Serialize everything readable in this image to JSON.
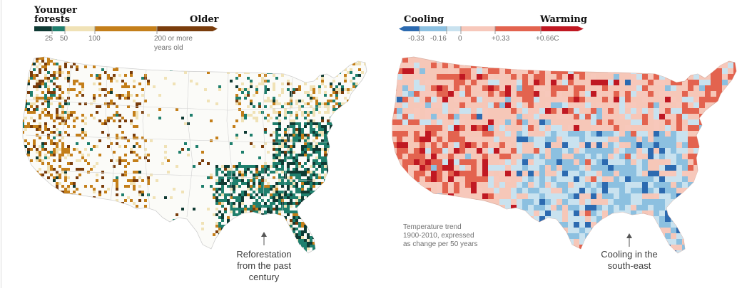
{
  "forest_age_map": {
    "legend": {
      "low_label_line1": "Younger",
      "low_label_line2": "forests",
      "high_label": "Older",
      "ticks": [
        "25",
        "50",
        "100",
        "200 or more"
      ],
      "tick_note": "years old",
      "colors": [
        "#0f3a33",
        "#1f7f6d",
        "#f0e2b6",
        "#c47f1a",
        "#7a3d0c"
      ]
    },
    "annotation": {
      "line1": "Reforestation",
      "line2": "from the past",
      "line3": "century"
    }
  },
  "temperature_map": {
    "legend": {
      "low_label": "Cooling",
      "high_label": "Warming",
      "ticks": [
        "-0.33",
        "-0.16",
        "0",
        "+0.33",
        "+0.66C"
      ],
      "colors": [
        "#2c6ab0",
        "#8cc0e0",
        "#c9e2ef",
        "#f7c8bb",
        "#e3634f",
        "#c01822"
      ]
    },
    "note": {
      "line1": "Temperature trend",
      "line2": "1900-2010, expressed",
      "line3": "as change per 50 years"
    },
    "annotation": {
      "line1": "Cooling in the",
      "line2": "south-east"
    }
  }
}
